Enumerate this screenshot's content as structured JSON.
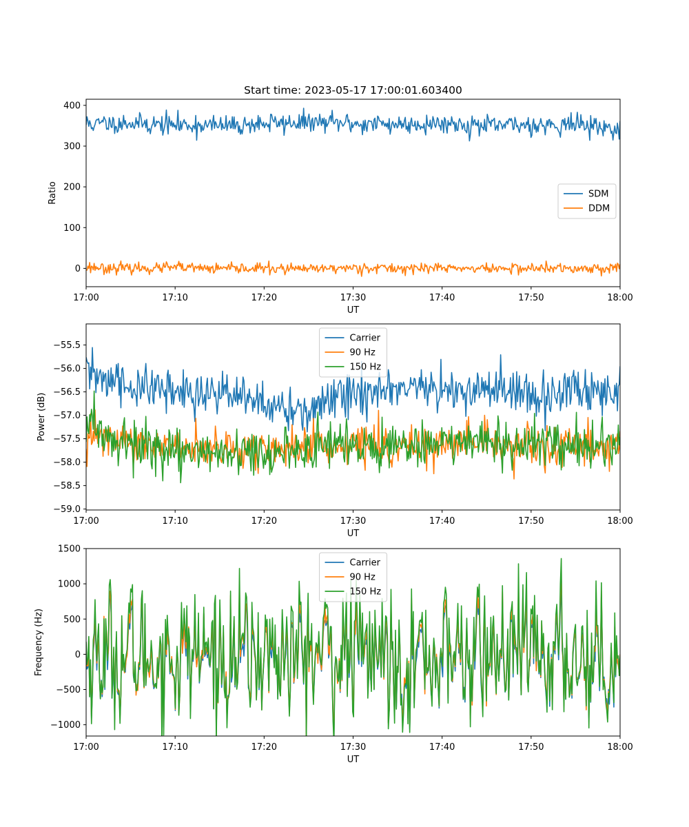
{
  "chart_data": [
    {
      "type": "line",
      "title": "Start time: 2023-05-17 17:00:01.603400",
      "xlabel": "UT",
      "ylabel": "Ratio",
      "xlim": [
        "17:00",
        "18:00"
      ],
      "x_ticks": [
        "17:00",
        "17:10",
        "17:20",
        "17:30",
        "17:40",
        "17:50",
        "18:00"
      ],
      "ylim": [
        -45,
        415
      ],
      "y_ticks": [
        0,
        100,
        200,
        300,
        400
      ],
      "legend_position": "center-right",
      "grid": false,
      "series": [
        {
          "name": "SDM",
          "color": "#1f77b4",
          "sample_minutes": [
            0,
            5,
            10,
            15,
            20,
            25,
            30,
            35,
            40,
            45,
            50,
            55,
            60
          ],
          "baseline": [
            355,
            357,
            352,
            350,
            355,
            358,
            355,
            354,
            356,
            350,
            352,
            355,
            340
          ],
          "noise": 15,
          "samples": 600
        },
        {
          "name": "DDM",
          "color": "#ff7f0e",
          "sample_minutes": [
            0,
            5,
            10,
            15,
            20,
            25,
            30,
            35,
            40,
            45,
            50,
            55,
            60
          ],
          "baseline": [
            3,
            0,
            2,
            -1,
            0,
            -2,
            2,
            0,
            1,
            -1,
            0,
            -1,
            3
          ],
          "noise": 8,
          "samples": 600
        }
      ]
    },
    {
      "type": "line",
      "title": "",
      "xlabel": "UT",
      "ylabel": "Power (dB)",
      "xlim": [
        "17:00",
        "18:00"
      ],
      "x_ticks": [
        "17:00",
        "17:10",
        "17:20",
        "17:30",
        "17:40",
        "17:50",
        "18:00"
      ],
      "ylim": [
        -59.02,
        -55.05
      ],
      "y_ticks": [
        -59.0,
        -58.5,
        -58.0,
        -57.5,
        -57.0,
        -56.5,
        -56.0,
        -55.5
      ],
      "y_tick_labels": [
        "−59.0",
        "−58.5",
        "−58.0",
        "−57.5",
        "−57.0",
        "−56.5",
        "−56.0",
        "−55.5"
      ],
      "legend_position": "upper-center",
      "grid": false,
      "series": [
        {
          "name": "Carrier",
          "color": "#1f77b4",
          "sample_minutes": [
            0,
            5,
            10,
            15,
            20,
            25,
            30,
            35,
            40,
            45,
            50,
            55,
            60
          ],
          "baseline": [
            -56.1,
            -56.4,
            -56.5,
            -56.5,
            -56.8,
            -56.9,
            -56.5,
            -56.5,
            -56.4,
            -56.5,
            -56.6,
            -56.5,
            -56.5
          ],
          "noise": 0.3,
          "samples": 600
        },
        {
          "name": "90 Hz",
          "color": "#ff7f0e",
          "sample_minutes": [
            0,
            5,
            10,
            15,
            20,
            25,
            30,
            35,
            40,
            45,
            50,
            55,
            60
          ],
          "baseline": [
            -57.4,
            -57.6,
            -57.7,
            -57.7,
            -57.7,
            -57.7,
            -57.6,
            -57.7,
            -57.6,
            -57.6,
            -57.7,
            -57.7,
            -57.7
          ],
          "noise": 0.25,
          "samples": 600
        },
        {
          "name": "150 Hz",
          "color": "#2ca02c",
          "sample_minutes": [
            0,
            5,
            10,
            15,
            20,
            25,
            30,
            35,
            40,
            45,
            50,
            55,
            60
          ],
          "baseline": [
            -57.3,
            -57.6,
            -57.8,
            -57.8,
            -57.9,
            -57.7,
            -57.6,
            -57.6,
            -57.6,
            -57.6,
            -57.7,
            -57.6,
            -57.7
          ],
          "noise": 0.3,
          "samples": 600
        }
      ]
    },
    {
      "type": "line",
      "title": "",
      "xlabel": "UT",
      "ylabel": "Frequency (Hz)",
      "xlim": [
        "17:00",
        "18:00"
      ],
      "x_ticks": [
        "17:00",
        "17:10",
        "17:20",
        "17:30",
        "17:40",
        "17:50",
        "18:00"
      ],
      "ylim": [
        -1160,
        1500
      ],
      "y_ticks": [
        -1000,
        -500,
        0,
        500,
        1000,
        1500
      ],
      "y_tick_labels": [
        "−1000",
        "−500",
        "0",
        "500",
        "1000",
        "1500"
      ],
      "legend_position": "upper-center",
      "grid": false,
      "series": [
        {
          "name": "Carrier",
          "color": "#1f77b4",
          "sample_minutes": [
            0,
            5,
            10,
            15,
            20,
            25,
            30,
            35,
            40,
            45,
            50,
            55,
            60
          ],
          "baseline": [
            0,
            0,
            0,
            0,
            0,
            0,
            0,
            0,
            0,
            0,
            0,
            0,
            0
          ],
          "noise": 380,
          "samples": 600,
          "offset": -60
        },
        {
          "name": "90 Hz",
          "color": "#ff7f0e",
          "sample_minutes": [
            0,
            5,
            10,
            15,
            20,
            25,
            30,
            35,
            40,
            45,
            50,
            55,
            60
          ],
          "baseline": [
            0,
            0,
            0,
            0,
            0,
            0,
            0,
            0,
            0,
            0,
            0,
            0,
            0
          ],
          "noise": 400,
          "samples": 600,
          "offset": -20
        },
        {
          "name": "150 Hz",
          "color": "#2ca02c",
          "sample_minutes": [
            0,
            5,
            10,
            15,
            20,
            25,
            30,
            35,
            40,
            45,
            50,
            55,
            60
          ],
          "baseline": [
            0,
            0,
            0,
            0,
            0,
            0,
            0,
            0,
            0,
            0,
            0,
            0,
            0
          ],
          "noise": 460,
          "samples": 600,
          "offset": 20
        }
      ]
    }
  ]
}
